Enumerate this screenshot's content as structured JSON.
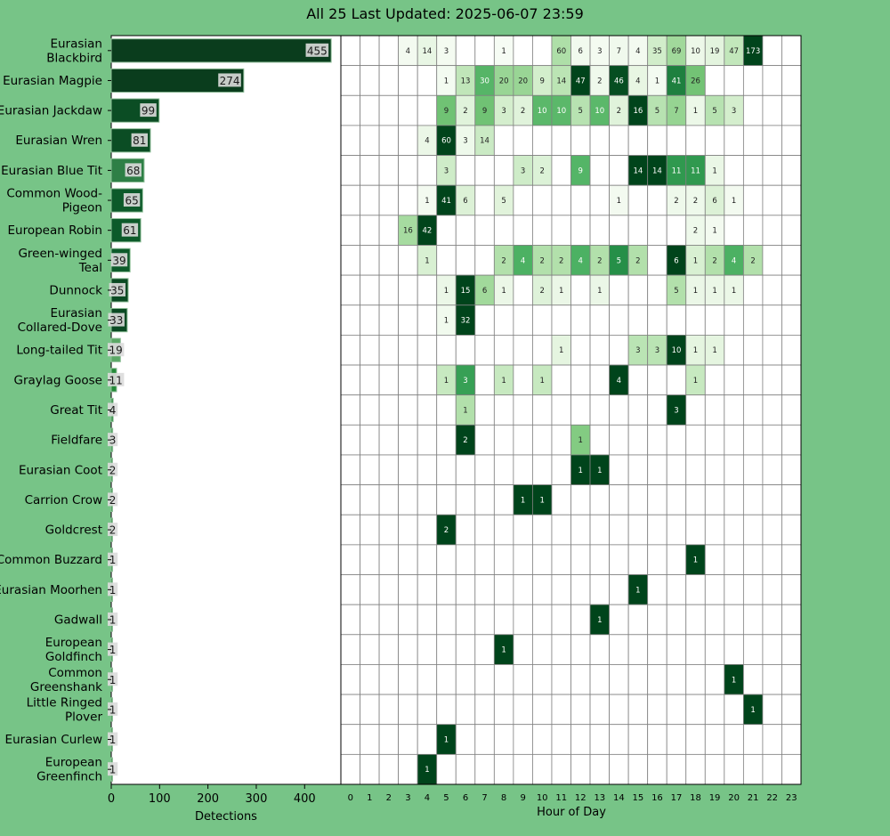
{
  "title": "All 25 Last Updated: 2025-06-07 23:59",
  "chart_data": [
    {
      "type": "bar",
      "orientation": "horizontal",
      "xlabel": "Detections",
      "xlim": [
        0,
        475
      ],
      "x_ticks": [
        0,
        100,
        200,
        300,
        400
      ],
      "categories": [
        "Eurasian\nBlackbird",
        "Eurasian Magpie",
        "Eurasian Jackdaw",
        "Eurasian Wren",
        "Eurasian Blue Tit",
        "Common Wood-\nPigeon",
        "European Robin",
        "Green-winged\nTeal",
        "Dunnock",
        "Eurasian\nCollared-Dove",
        "Long-tailed Tit",
        "Graylag Goose",
        "Great Tit",
        "Fieldfare",
        "Eurasian Coot",
        "Carrion Crow",
        "Goldcrest",
        "Common Buzzard",
        "Eurasian Moorhen",
        "Gadwall",
        "European\nGoldfinch",
        "Common\nGreenshank",
        "Little Ringed\nPlover",
        "Eurasian Curlew",
        "European\nGreenfinch"
      ],
      "values": [
        455,
        274,
        99,
        81,
        68,
        65,
        61,
        39,
        35,
        33,
        19,
        11,
        4,
        3,
        2,
        2,
        2,
        1,
        1,
        1,
        1,
        1,
        1,
        1,
        1
      ]
    },
    {
      "type": "heatmap",
      "xlabel": "Hour of Day",
      "x": [
        "0",
        "1",
        "2",
        "3",
        "4",
        "5",
        "6",
        "7",
        "8",
        "9",
        "10",
        "11",
        "12",
        "13",
        "14",
        "15",
        "16",
        "17",
        "18",
        "19",
        "20",
        "21",
        "22",
        "23"
      ],
      "highlight_hour": "23",
      "highlight_color": "#ffff33",
      "rows": [
        [
          0,
          0,
          0,
          4,
          14,
          3,
          0,
          0,
          1,
          0,
          0,
          60,
          6,
          3,
          7,
          4,
          35,
          69,
          10,
          19,
          47,
          173,
          0,
          0
        ],
        [
          0,
          0,
          0,
          0,
          0,
          1,
          13,
          30,
          20,
          20,
          9,
          14,
          47,
          2,
          46,
          4,
          1,
          41,
          26,
          0,
          0,
          0,
          0,
          0
        ],
        [
          0,
          0,
          0,
          0,
          0,
          9,
          2,
          9,
          3,
          2,
          10,
          10,
          5,
          10,
          2,
          16,
          5,
          7,
          1,
          5,
          3,
          0,
          0,
          0
        ],
        [
          0,
          0,
          0,
          0,
          4,
          60,
          3,
          14,
          0,
          0,
          0,
          0,
          0,
          0,
          0,
          0,
          0,
          0,
          0,
          0,
          0,
          0,
          0,
          0
        ],
        [
          0,
          0,
          0,
          0,
          0,
          3,
          0,
          0,
          0,
          3,
          2,
          0,
          9,
          0,
          0,
          14,
          14,
          11,
          11,
          1,
          0,
          0,
          0,
          0
        ],
        [
          0,
          0,
          0,
          0,
          1,
          41,
          6,
          0,
          5,
          0,
          0,
          0,
          0,
          0,
          1,
          0,
          0,
          2,
          2,
          6,
          1,
          0,
          0,
          0
        ],
        [
          0,
          0,
          0,
          16,
          42,
          0,
          0,
          0,
          0,
          0,
          0,
          0,
          0,
          0,
          0,
          0,
          0,
          0,
          2,
          1,
          0,
          0,
          0,
          0
        ],
        [
          0,
          0,
          0,
          0,
          1,
          0,
          0,
          0,
          2,
          4,
          2,
          2,
          4,
          2,
          5,
          2,
          0,
          6,
          1,
          2,
          4,
          2,
          0,
          0
        ],
        [
          0,
          0,
          0,
          0,
          0,
          1,
          15,
          6,
          1,
          0,
          2,
          1,
          0,
          1,
          0,
          0,
          0,
          5,
          1,
          1,
          1,
          0,
          0,
          0
        ],
        [
          0,
          0,
          0,
          0,
          0,
          1,
          32,
          0,
          0,
          0,
          0,
          0,
          0,
          0,
          0,
          0,
          0,
          0,
          0,
          0,
          0,
          0,
          0,
          0
        ],
        [
          0,
          0,
          0,
          0,
          0,
          0,
          0,
          0,
          0,
          0,
          0,
          1,
          0,
          0,
          0,
          3,
          3,
          10,
          1,
          1,
          0,
          0,
          0,
          0
        ],
        [
          0,
          0,
          0,
          0,
          0,
          1,
          3,
          0,
          1,
          0,
          1,
          0,
          0,
          0,
          4,
          0,
          0,
          0,
          1,
          0,
          0,
          0,
          0,
          0
        ],
        [
          0,
          0,
          0,
          0,
          0,
          0,
          1,
          0,
          0,
          0,
          0,
          0,
          0,
          0,
          0,
          0,
          0,
          3,
          0,
          0,
          0,
          0,
          0,
          0
        ],
        [
          0,
          0,
          0,
          0,
          0,
          0,
          2,
          0,
          0,
          0,
          0,
          0,
          1,
          0,
          0,
          0,
          0,
          0,
          0,
          0,
          0,
          0,
          0,
          0
        ],
        [
          0,
          0,
          0,
          0,
          0,
          0,
          0,
          0,
          0,
          0,
          0,
          0,
          1,
          1,
          0,
          0,
          0,
          0,
          0,
          0,
          0,
          0,
          0,
          0
        ],
        [
          0,
          0,
          0,
          0,
          0,
          0,
          0,
          0,
          0,
          1,
          1,
          0,
          0,
          0,
          0,
          0,
          0,
          0,
          0,
          0,
          0,
          0,
          0,
          0
        ],
        [
          0,
          0,
          0,
          0,
          0,
          2,
          0,
          0,
          0,
          0,
          0,
          0,
          0,
          0,
          0,
          0,
          0,
          0,
          0,
          0,
          0,
          0,
          0,
          0
        ],
        [
          0,
          0,
          0,
          0,
          0,
          0,
          0,
          0,
          0,
          0,
          0,
          0,
          0,
          0,
          0,
          0,
          0,
          0,
          1,
          0,
          0,
          0,
          0,
          0
        ],
        [
          0,
          0,
          0,
          0,
          0,
          0,
          0,
          0,
          0,
          0,
          0,
          0,
          0,
          0,
          0,
          1,
          0,
          0,
          0,
          0,
          0,
          0,
          0,
          0
        ],
        [
          0,
          0,
          0,
          0,
          0,
          0,
          0,
          0,
          0,
          0,
          0,
          0,
          0,
          1,
          0,
          0,
          0,
          0,
          0,
          0,
          0,
          0,
          0,
          0
        ],
        [
          0,
          0,
          0,
          0,
          0,
          0,
          0,
          0,
          1,
          0,
          0,
          0,
          0,
          0,
          0,
          0,
          0,
          0,
          0,
          0,
          0,
          0,
          0,
          0
        ],
        [
          0,
          0,
          0,
          0,
          0,
          0,
          0,
          0,
          0,
          0,
          0,
          0,
          0,
          0,
          0,
          0,
          0,
          0,
          0,
          0,
          1,
          0,
          0,
          0
        ],
        [
          0,
          0,
          0,
          0,
          0,
          0,
          0,
          0,
          0,
          0,
          0,
          0,
          0,
          0,
          0,
          0,
          0,
          0,
          0,
          0,
          0,
          1,
          0,
          0
        ],
        [
          0,
          0,
          0,
          0,
          0,
          1,
          0,
          0,
          0,
          0,
          0,
          0,
          0,
          0,
          0,
          0,
          0,
          0,
          0,
          0,
          0,
          0,
          0,
          0
        ],
        [
          0,
          0,
          0,
          0,
          1,
          0,
          0,
          0,
          0,
          0,
          0,
          0,
          0,
          0,
          0,
          0,
          0,
          0,
          0,
          0,
          0,
          0,
          0,
          0
        ]
      ]
    }
  ]
}
